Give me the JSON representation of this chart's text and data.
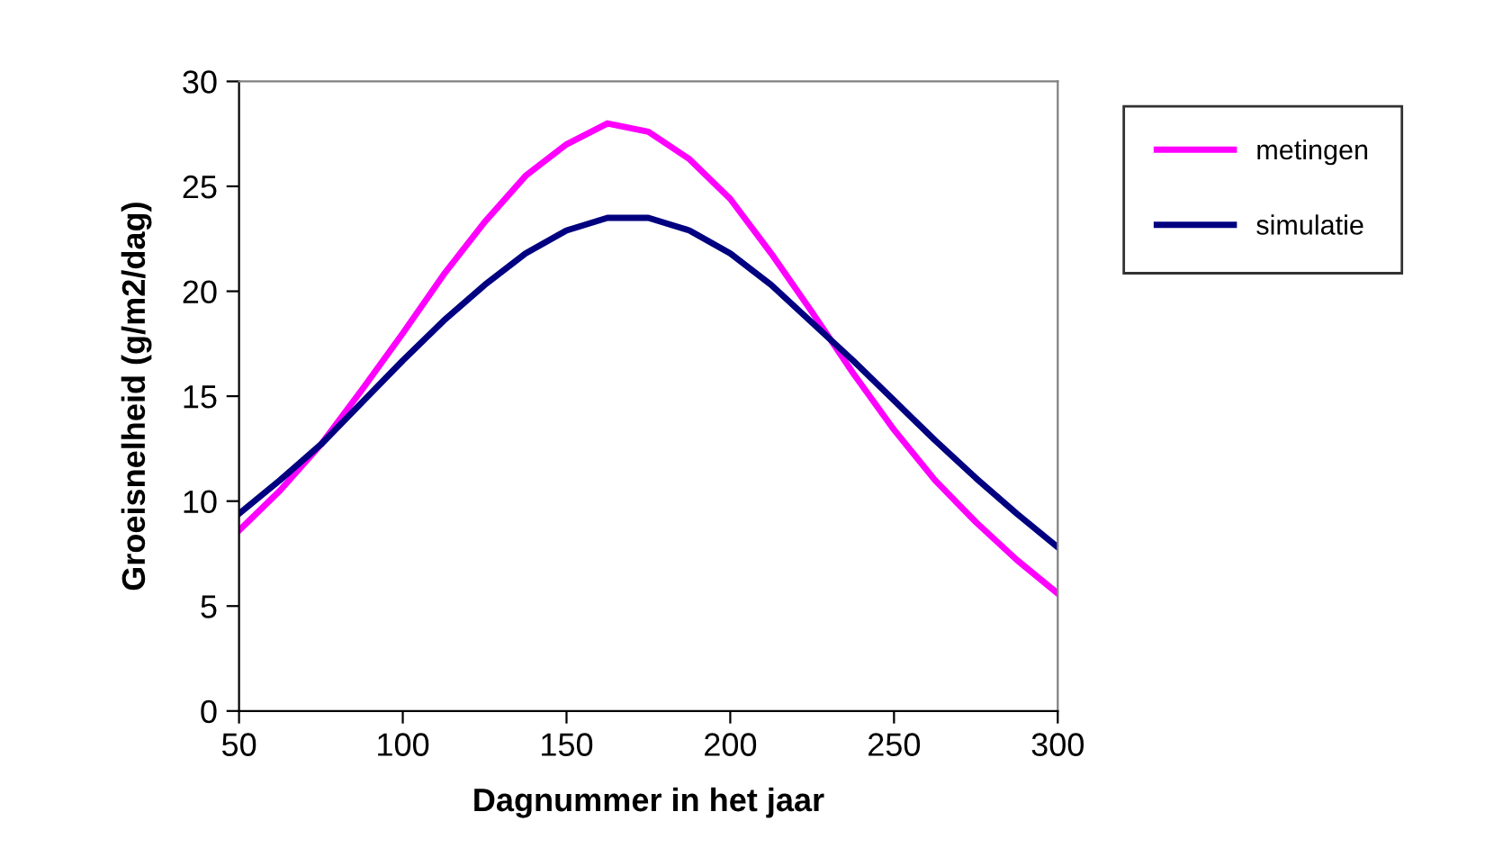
{
  "chart_data": {
    "type": "line",
    "xlabel": "Dagnummer in het jaar",
    "ylabel": "Groeisnelheid (g/m2/dag)",
    "x": [
      50,
      62.5,
      75,
      87.5,
      100,
      112.5,
      125,
      137.5,
      150,
      162.5,
      175,
      187.5,
      200,
      212.5,
      225,
      237.5,
      250,
      262.5,
      275,
      287.5,
      300
    ],
    "series": [
      {
        "name": "metingen",
        "color": "#ff00ff",
        "values": [
          8.6,
          10.5,
          12.7,
          15.3,
          18.0,
          20.8,
          23.3,
          25.5,
          27.0,
          28.0,
          27.6,
          26.3,
          24.4,
          21.8,
          19.0,
          16.1,
          13.4,
          11.0,
          9.0,
          7.2,
          5.6
        ]
      },
      {
        "name": "simulatie",
        "color": "#000080",
        "values": [
          9.4,
          11.0,
          12.7,
          14.7,
          16.7,
          18.6,
          20.3,
          21.8,
          22.9,
          23.5,
          23.5,
          22.9,
          21.8,
          20.3,
          18.5,
          16.7,
          14.8,
          12.9,
          11.1,
          9.4,
          7.8
        ]
      }
    ],
    "xlim": [
      50,
      300
    ],
    "ylim": [
      0,
      30
    ],
    "xticks": [
      50,
      100,
      150,
      200,
      250,
      300
    ],
    "yticks": [
      0,
      5,
      10,
      15,
      20,
      25,
      30
    ],
    "grid": false,
    "legend": "right",
    "marker": "none",
    "line_style": "solid"
  }
}
